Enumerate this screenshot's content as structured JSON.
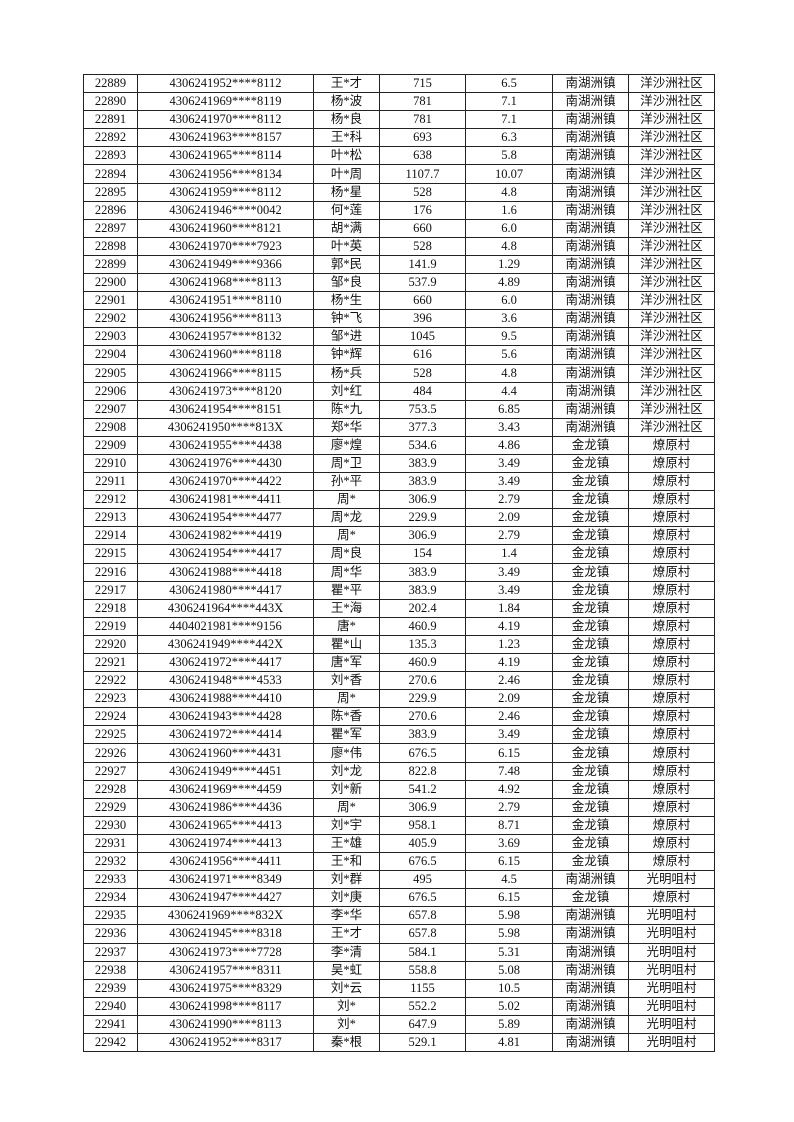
{
  "rows": [
    [
      "22889",
      "4306241952****8112",
      "王*才",
      "715",
      "6.5",
      "南湖洲镇",
      "洋沙洲社区"
    ],
    [
      "22890",
      "4306241969****8119",
      "杨*波",
      "781",
      "7.1",
      "南湖洲镇",
      "洋沙洲社区"
    ],
    [
      "22891",
      "4306241970****8112",
      "杨*良",
      "781",
      "7.1",
      "南湖洲镇",
      "洋沙洲社区"
    ],
    [
      "22892",
      "4306241963****8157",
      "王*科",
      "693",
      "6.3",
      "南湖洲镇",
      "洋沙洲社区"
    ],
    [
      "22893",
      "4306241965****8114",
      "叶*松",
      "638",
      "5.8",
      "南湖洲镇",
      "洋沙洲社区"
    ],
    [
      "22894",
      "4306241956****8134",
      "叶*周",
      "1107.7",
      "10.07",
      "南湖洲镇",
      "洋沙洲社区"
    ],
    [
      "22895",
      "4306241959****8112",
      "杨*星",
      "528",
      "4.8",
      "南湖洲镇",
      "洋沙洲社区"
    ],
    [
      "22896",
      "4306241946****0042",
      "何*莲",
      "176",
      "1.6",
      "南湖洲镇",
      "洋沙洲社区"
    ],
    [
      "22897",
      "4306241960****8121",
      "胡*满",
      "660",
      "6.0",
      "南湖洲镇",
      "洋沙洲社区"
    ],
    [
      "22898",
      "4306241970****7923",
      "叶*英",
      "528",
      "4.8",
      "南湖洲镇",
      "洋沙洲社区"
    ],
    [
      "22899",
      "4306241949****9366",
      "郭*民",
      "141.9",
      "1.29",
      "南湖洲镇",
      "洋沙洲社区"
    ],
    [
      "22900",
      "4306241968****8113",
      "邹*良",
      "537.9",
      "4.89",
      "南湖洲镇",
      "洋沙洲社区"
    ],
    [
      "22901",
      "4306241951****8110",
      "杨*生",
      "660",
      "6.0",
      "南湖洲镇",
      "洋沙洲社区"
    ],
    [
      "22902",
      "4306241956****8113",
      "钟*飞",
      "396",
      "3.6",
      "南湖洲镇",
      "洋沙洲社区"
    ],
    [
      "22903",
      "4306241957****8132",
      "邹*进",
      "1045",
      "9.5",
      "南湖洲镇",
      "洋沙洲社区"
    ],
    [
      "22904",
      "4306241960****8118",
      "钟*辉",
      "616",
      "5.6",
      "南湖洲镇",
      "洋沙洲社区"
    ],
    [
      "22905",
      "4306241966****8115",
      "杨*兵",
      "528",
      "4.8",
      "南湖洲镇",
      "洋沙洲社区"
    ],
    [
      "22906",
      "4306241973****8120",
      "刘*红",
      "484",
      "4.4",
      "南湖洲镇",
      "洋沙洲社区"
    ],
    [
      "22907",
      "4306241954****8151",
      "陈*九",
      "753.5",
      "6.85",
      "南湖洲镇",
      "洋沙洲社区"
    ],
    [
      "22908",
      "4306241950****813X",
      "郑*华",
      "377.3",
      "3.43",
      "南湖洲镇",
      "洋沙洲社区"
    ],
    [
      "22909",
      "4306241955****4438",
      "廖*煌",
      "534.6",
      "4.86",
      "金龙镇",
      "燎原村"
    ],
    [
      "22910",
      "4306241976****4430",
      "周*卫",
      "383.9",
      "3.49",
      "金龙镇",
      "燎原村"
    ],
    [
      "22911",
      "4306241970****4422",
      "孙*平",
      "383.9",
      "3.49",
      "金龙镇",
      "燎原村"
    ],
    [
      "22912",
      "4306241981****4411",
      "周*",
      "306.9",
      "2.79",
      "金龙镇",
      "燎原村"
    ],
    [
      "22913",
      "4306241954****4477",
      "周*龙",
      "229.9",
      "2.09",
      "金龙镇",
      "燎原村"
    ],
    [
      "22914",
      "4306241982****4419",
      "周*",
      "306.9",
      "2.79",
      "金龙镇",
      "燎原村"
    ],
    [
      "22915",
      "4306241954****4417",
      "周*良",
      "154",
      "1.4",
      "金龙镇",
      "燎原村"
    ],
    [
      "22916",
      "4306241988****4418",
      "周*华",
      "383.9",
      "3.49",
      "金龙镇",
      "燎原村"
    ],
    [
      "22917",
      "4306241980****4417",
      "瞿*平",
      "383.9",
      "3.49",
      "金龙镇",
      "燎原村"
    ],
    [
      "22918",
      "4306241964****443X",
      "王*海",
      "202.4",
      "1.84",
      "金龙镇",
      "燎原村"
    ],
    [
      "22919",
      "4404021981****9156",
      "唐*",
      "460.9",
      "4.19",
      "金龙镇",
      "燎原村"
    ],
    [
      "22920",
      "4306241949****442X",
      "瞿*山",
      "135.3",
      "1.23",
      "金龙镇",
      "燎原村"
    ],
    [
      "22921",
      "4306241972****4417",
      "唐*军",
      "460.9",
      "4.19",
      "金龙镇",
      "燎原村"
    ],
    [
      "22922",
      "4306241948****4533",
      "刘*香",
      "270.6",
      "2.46",
      "金龙镇",
      "燎原村"
    ],
    [
      "22923",
      "4306241988****4410",
      "周*",
      "229.9",
      "2.09",
      "金龙镇",
      "燎原村"
    ],
    [
      "22924",
      "4306241943****4428",
      "陈*香",
      "270.6",
      "2.46",
      "金龙镇",
      "燎原村"
    ],
    [
      "22925",
      "4306241972****4414",
      "瞿*军",
      "383.9",
      "3.49",
      "金龙镇",
      "燎原村"
    ],
    [
      "22926",
      "4306241960****4431",
      "廖*伟",
      "676.5",
      "6.15",
      "金龙镇",
      "燎原村"
    ],
    [
      "22927",
      "4306241949****4451",
      "刘*龙",
      "822.8",
      "7.48",
      "金龙镇",
      "燎原村"
    ],
    [
      "22928",
      "4306241969****4459",
      "刘*新",
      "541.2",
      "4.92",
      "金龙镇",
      "燎原村"
    ],
    [
      "22929",
      "4306241986****4436",
      "周*",
      "306.9",
      "2.79",
      "金龙镇",
      "燎原村"
    ],
    [
      "22930",
      "4306241965****4413",
      "刘*宇",
      "958.1",
      "8.71",
      "金龙镇",
      "燎原村"
    ],
    [
      "22931",
      "4306241974****4413",
      "王*雄",
      "405.9",
      "3.69",
      "金龙镇",
      "燎原村"
    ],
    [
      "22932",
      "4306241956****4411",
      "王*和",
      "676.5",
      "6.15",
      "金龙镇",
      "燎原村"
    ],
    [
      "22933",
      "4306241971****8349",
      "刘*群",
      "495",
      "4.5",
      "南湖洲镇",
      "光明咀村"
    ],
    [
      "22934",
      "4306241947****4427",
      "刘*庚",
      "676.5",
      "6.15",
      "金龙镇",
      "燎原村"
    ],
    [
      "22935",
      "4306241969****832X",
      "李*华",
      "657.8",
      "5.98",
      "南湖洲镇",
      "光明咀村"
    ],
    [
      "22936",
      "4306241945****8318",
      "王*才",
      "657.8",
      "5.98",
      "南湖洲镇",
      "光明咀村"
    ],
    [
      "22937",
      "4306241973****7728",
      "李*清",
      "584.1",
      "5.31",
      "南湖洲镇",
      "光明咀村"
    ],
    [
      "22938",
      "4306241957****8311",
      "吴*虹",
      "558.8",
      "5.08",
      "南湖洲镇",
      "光明咀村"
    ],
    [
      "22939",
      "4306241975****8329",
      "刘*云",
      "1155",
      "10.5",
      "南湖洲镇",
      "光明咀村"
    ],
    [
      "22940",
      "4306241998****8117",
      "刘*",
      "552.2",
      "5.02",
      "南湖洲镇",
      "光明咀村"
    ],
    [
      "22941",
      "4306241990****8113",
      "刘*",
      "647.9",
      "5.89",
      "南湖洲镇",
      "光明咀村"
    ],
    [
      "22942",
      "4306241952****8317",
      "秦*根",
      "529.1",
      "4.81",
      "南湖洲镇",
      "光明咀村"
    ]
  ]
}
